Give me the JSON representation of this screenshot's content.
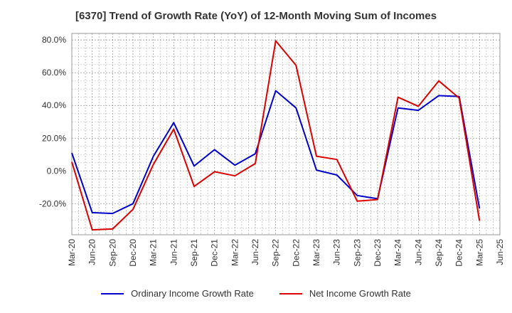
{
  "chart_data": {
    "type": "line",
    "title": "[6370]  Trend of Growth Rate (YoY) of 12-Month Moving Sum of Incomes",
    "xlabel": "",
    "ylabel": "",
    "x": [
      "Mar-20",
      "Jun-20",
      "Sep-20",
      "Dec-20",
      "Mar-21",
      "Jun-21",
      "Sep-21",
      "Dec-21",
      "Mar-22",
      "Jun-22",
      "Sep-22",
      "Dec-22",
      "Mar-23",
      "Jun-23",
      "Sep-23",
      "Dec-23",
      "Mar-24",
      "Jun-24",
      "Sep-24",
      "Dec-24",
      "Mar-25"
    ],
    "x_ticks": [
      "Mar-20",
      "Jun-20",
      "Sep-20",
      "Dec-20",
      "Mar-21",
      "Jun-21",
      "Sep-21",
      "Dec-21",
      "Mar-22",
      "Jun-22",
      "Sep-22",
      "Dec-22",
      "Mar-23",
      "Jun-23",
      "Sep-23",
      "Dec-23",
      "Mar-24",
      "Jun-24",
      "Sep-24",
      "Dec-24",
      "Mar-25",
      "Jun-25"
    ],
    "y_ticks": [
      "80.0%",
      "60.0%",
      "40.0%",
      "20.0%",
      "0.0%",
      "-20.0%"
    ],
    "ylim": [
      -39,
      84
    ],
    "grid": true,
    "legend_position": "bottom",
    "series": [
      {
        "name": "Ordinary Income Growth Rate",
        "color": "#0000cc",
        "values": [
          11,
          -25.5,
          -26,
          -20,
          9,
          29.5,
          3,
          13,
          3.5,
          10.5,
          49,
          38.5,
          0.5,
          -2.5,
          -15,
          -17,
          38.5,
          37,
          46,
          45.5,
          -23
        ]
      },
      {
        "name": "Net Income Growth Rate",
        "color": "#dd0000",
        "values": [
          5.5,
          -36,
          -35.5,
          -23.5,
          4,
          25.5,
          -9.5,
          -0.5,
          -3,
          4.5,
          79.5,
          64.5,
          9,
          7,
          -18.5,
          -17.5,
          45,
          39.5,
          55,
          44.5,
          -30.5
        ]
      }
    ]
  }
}
